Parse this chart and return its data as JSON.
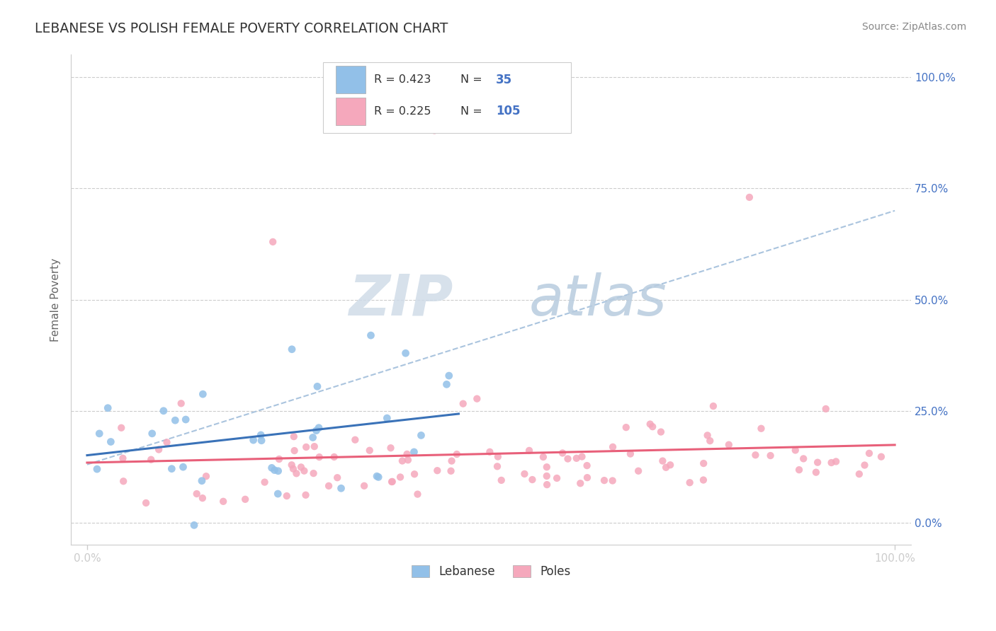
{
  "title": "LEBANESE VS POLISH FEMALE POVERTY CORRELATION CHART",
  "source_text": "Source: ZipAtlas.com",
  "ylabel": "Female Poverty",
  "xlim": [
    -0.02,
    1.02
  ],
  "ylim": [
    -0.05,
    1.05
  ],
  "x_ticks": [
    0.0,
    1.0
  ],
  "x_tick_labels": [
    "0.0%",
    "100.0%"
  ],
  "y_ticks_right": [
    0.0,
    0.25,
    0.5,
    0.75,
    1.0
  ],
  "y_tick_labels_right": [
    "0.0%",
    "25.0%",
    "50.0%",
    "75.0%",
    "100.0%"
  ],
  "lebanese_color": "#92c0e8",
  "poles_color": "#f5a8bc",
  "lebanese_line_color": "#3a72b8",
  "poles_line_color": "#e8607a",
  "dashed_line_color": "#aac4de",
  "legend_R_lebanese": "0.423",
  "legend_N_lebanese": "35",
  "legend_R_poles": "0.225",
  "legend_N_poles": "105",
  "legend_color": "#4472c4",
  "text_color": "#333333",
  "grid_color": "#cccccc",
  "watermark_text": "ZIPatlas",
  "watermark_color": "#dde8f4",
  "right_tick_color": "#4472c4",
  "source_color": "#888888",
  "leb_seed": 7,
  "pol_seed": 99
}
